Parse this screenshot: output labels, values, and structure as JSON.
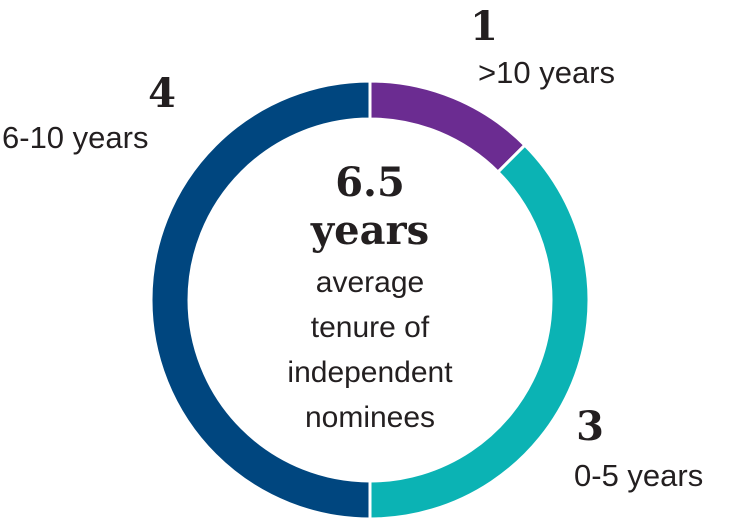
{
  "chart_data": {
    "type": "donut",
    "categories": [
      ">10 years",
      "0-5 years",
      "6-10 years"
    ],
    "values": [
      1,
      3,
      4
    ],
    "colors": [
      "#6b2c91",
      "#0bb3b4",
      "#00467f"
    ],
    "center_value": "6.5",
    "center_unit": "years",
    "center_lines": [
      "average",
      "tenure of",
      "independent",
      "nominees"
    ]
  }
}
